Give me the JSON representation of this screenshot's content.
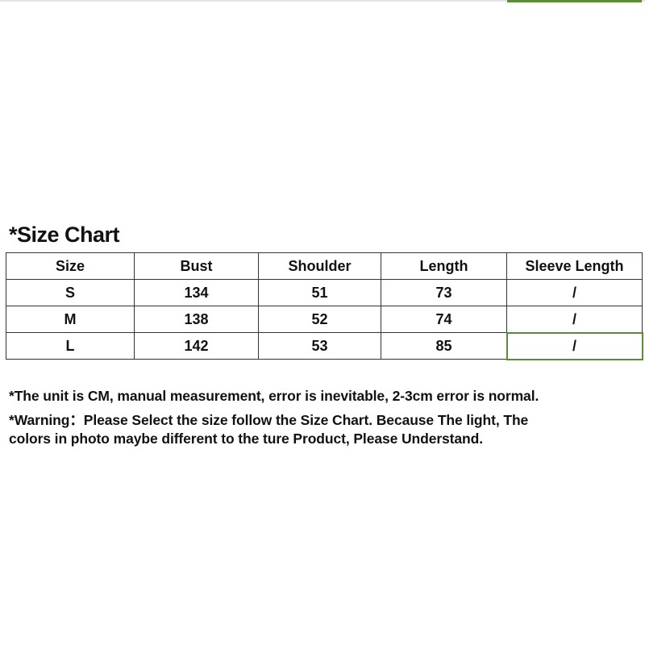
{
  "title": "*Size Chart",
  "table": {
    "headers": [
      "Size",
      "Bust",
      "Shoulder",
      "Length",
      "Sleeve Length"
    ],
    "rows": [
      [
        "S",
        "134",
        "51",
        "73",
        "/"
      ],
      [
        "M",
        "138",
        "52",
        "74",
        "/"
      ],
      [
        "L",
        "142",
        "53",
        "85",
        "/"
      ]
    ]
  },
  "notes": [
    "*The unit is CM, manual measurement, error is inevitable, 2-3cm error is normal.",
    "*Warning：Please Select the size follow the Size Chart. Because The light, The",
    "colors in photo maybe different to the ture Product, Please Understand."
  ],
  "selection_color": "#5b8a3c"
}
